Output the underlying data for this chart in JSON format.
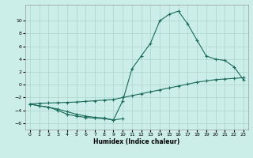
{
  "xlabel": "Humidex (Indice chaleur)",
  "background_color": "#cceee8",
  "grid_color": "#aad4cc",
  "line_color": "#1a6b5a",
  "xlim": [
    -0.5,
    23.5
  ],
  "ylim": [
    -7,
    12.5
  ],
  "yticks": [
    -6,
    -4,
    -2,
    0,
    2,
    4,
    6,
    8,
    10
  ],
  "xticks": [
    0,
    1,
    2,
    3,
    4,
    5,
    6,
    7,
    8,
    9,
    10,
    11,
    12,
    13,
    14,
    15,
    16,
    17,
    18,
    19,
    20,
    21,
    22,
    23
  ],
  "curve1_x": [
    0,
    1,
    2,
    3,
    4,
    5,
    6,
    7,
    8,
    9,
    10,
    11,
    12,
    13,
    14,
    15,
    16,
    17,
    18,
    19,
    20,
    21,
    22,
    23
  ],
  "curve1_y": [
    -3.0,
    -3.3,
    -3.5,
    -3.8,
    -4.2,
    -4.6,
    -4.9,
    -5.1,
    -5.2,
    -5.5,
    -2.5,
    2.5,
    4.5,
    6.5,
    10.0,
    11.0,
    11.5,
    9.5,
    7.0,
    4.5,
    4.0,
    3.8,
    2.8,
    0.8
  ],
  "curve2_x": [
    0,
    1,
    2,
    3,
    4,
    5,
    6,
    7,
    8,
    9,
    10,
    11,
    12,
    13,
    14,
    15,
    16,
    17,
    18,
    19,
    20,
    21,
    22,
    23
  ],
  "curve2_y": [
    -3.0,
    -2.9,
    -2.85,
    -2.8,
    -2.75,
    -2.7,
    -2.6,
    -2.5,
    -2.4,
    -2.3,
    -2.0,
    -1.7,
    -1.4,
    -1.1,
    -0.8,
    -0.5,
    -0.2,
    0.1,
    0.4,
    0.6,
    0.8,
    0.9,
    1.0,
    1.1
  ],
  "curve3_x": [
    0,
    1,
    2,
    3,
    4,
    5,
    6,
    7,
    8,
    9,
    10
  ],
  "curve3_y": [
    -3.0,
    -3.3,
    -3.5,
    -4.0,
    -4.6,
    -4.9,
    -5.1,
    -5.2,
    -5.3,
    -5.5,
    -5.3
  ]
}
